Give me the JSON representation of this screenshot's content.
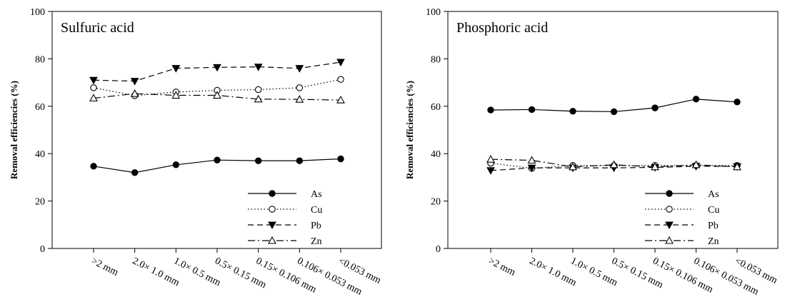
{
  "chart_data": [
    {
      "type": "line",
      "title": "Sulfuric acid",
      "xlabel": "",
      "ylabel": "Removal efficiencies (%)",
      "ylim": [
        0,
        100
      ],
      "yticks": [
        0,
        20,
        40,
        60,
        80,
        100
      ],
      "categories": [
        ">2 mm",
        "2.0× 1.0 mm",
        "1.0× 0.5 mm",
        "0.5× 0.15 mm",
        "0.15× 0.106 mm",
        "0.106× 0.053 mm",
        "<0.053 mm"
      ],
      "legend_position": "bottom-right",
      "grid": false,
      "series": [
        {
          "name": "As",
          "style": "solid",
          "marker": "filled-circle",
          "values": [
            34.7,
            32.0,
            35.3,
            37.3,
            37.0,
            37.0,
            37.8
          ]
        },
        {
          "name": "Cu",
          "style": "dotted",
          "marker": "open-circle",
          "values": [
            67.8,
            64.5,
            66.0,
            66.7,
            67.0,
            67.8,
            71.3
          ]
        },
        {
          "name": "Pb",
          "style": "dashed",
          "marker": "filled-triangle-down",
          "values": [
            71.0,
            70.6,
            76.0,
            76.4,
            76.6,
            76.0,
            78.6
          ]
        },
        {
          "name": "Zn",
          "style": "dashdot",
          "marker": "open-triangle-up",
          "values": [
            63.4,
            65.3,
            64.6,
            64.6,
            63.0,
            62.9,
            62.6
          ]
        }
      ]
    },
    {
      "type": "line",
      "title": "Phosphoric acid",
      "xlabel": "",
      "ylabel": "Removal efficiencies (%)",
      "ylim": [
        0,
        100
      ],
      "yticks": [
        0,
        20,
        40,
        60,
        80,
        100
      ],
      "categories": [
        ">2 mm",
        "2.0× 1.0 mm",
        "1.0× 0.5 mm",
        "0.5× 0.15 mm",
        "0.15× 0.106 mm",
        "0.106× 0.053 mm",
        "<0.053 mm"
      ],
      "legend_position": "bottom-right",
      "grid": false,
      "series": [
        {
          "name": "As",
          "style": "solid",
          "marker": "filled-circle",
          "values": [
            58.4,
            58.6,
            57.9,
            57.7,
            59.3,
            63.0,
            61.8
          ]
        },
        {
          "name": "Cu",
          "style": "dotted",
          "marker": "open-circle",
          "values": [
            36.0,
            33.8,
            35.0,
            34.9,
            35.0,
            35.0,
            35.0
          ]
        },
        {
          "name": "Pb",
          "style": "dashed",
          "marker": "filled-triangle-down",
          "values": [
            32.9,
            34.0,
            34.0,
            34.0,
            34.2,
            34.7,
            34.6
          ]
        },
        {
          "name": "Zn",
          "style": "dashdot",
          "marker": "open-triangle-up",
          "values": [
            37.6,
            37.2,
            34.4,
            35.3,
            34.4,
            35.3,
            34.4
          ]
        }
      ]
    }
  ]
}
